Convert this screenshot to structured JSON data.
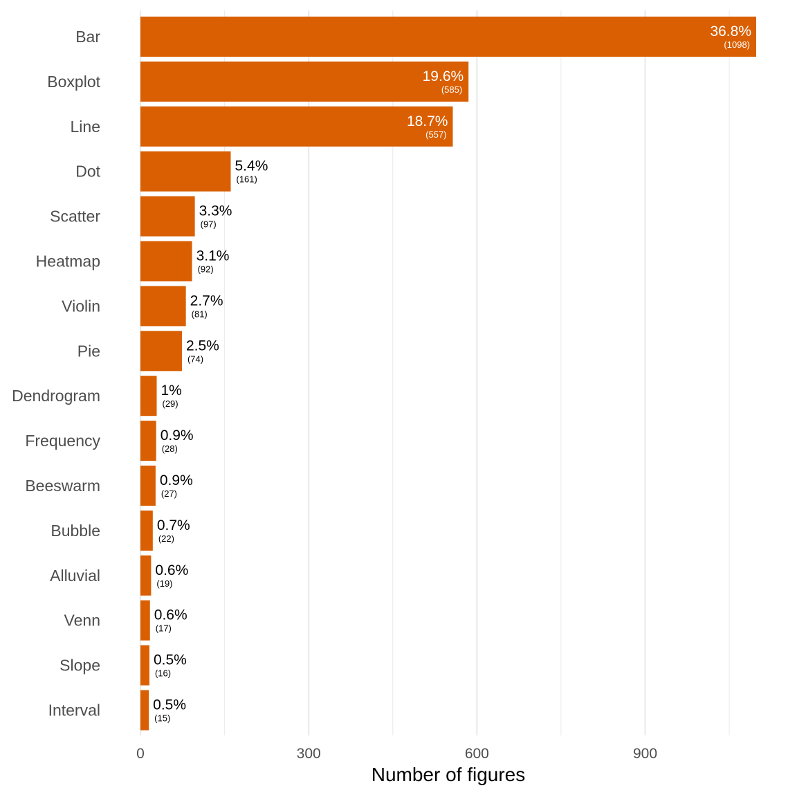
{
  "chart_data": {
    "type": "bar",
    "orientation": "horizontal",
    "title": "",
    "xlabel": "Number of figures",
    "ylabel": "",
    "xlim": [
      0,
      1098
    ],
    "x_ticks": [
      0,
      300,
      600,
      900
    ],
    "grid": true,
    "bar_color": "#D95F02",
    "categories": [
      "Bar",
      "Boxplot",
      "Line",
      "Dot",
      "Scatter",
      "Heatmap",
      "Violin",
      "Pie",
      "Dendrogram",
      "Frequency",
      "Beeswarm",
      "Bubble",
      "Alluvial",
      "Venn",
      "Slope",
      "Interval"
    ],
    "values": [
      1098,
      585,
      557,
      161,
      97,
      92,
      81,
      74,
      29,
      28,
      27,
      22,
      19,
      17,
      16,
      15
    ],
    "percent_labels": [
      "36.8%",
      "19.6%",
      "18.7%",
      "5.4%",
      "3.3%",
      "3.1%",
      "2.7%",
      "2.5%",
      "1%",
      "0.9%",
      "0.9%",
      "0.7%",
      "0.6%",
      "0.6%",
      "0.5%",
      "0.5%"
    ],
    "count_labels": [
      "(1098)",
      "(585)",
      "(557)",
      "(161)",
      "(97)",
      "(92)",
      "(81)",
      "(74)",
      "(29)",
      "(28)",
      "(27)",
      "(22)",
      "(19)",
      "(17)",
      "(16)",
      "(15)"
    ],
    "labels_inside_bar": [
      true,
      true,
      true,
      false,
      false,
      false,
      false,
      false,
      false,
      false,
      false,
      false,
      false,
      false,
      false,
      false
    ]
  }
}
